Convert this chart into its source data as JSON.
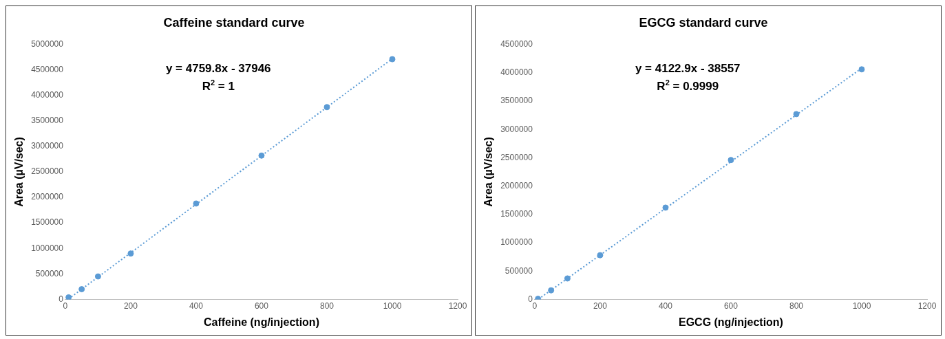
{
  "chart_data": [
    {
      "type": "scatter",
      "title": "Caffeine standard curve",
      "xlabel": "Caffeine (ng/injection)",
      "ylabel": "Area (µV/sec)",
      "annotations": [
        "y = 4759.8x - 37946",
        "R$^{2}$ = 1"
      ],
      "xlim": [
        0,
        1200
      ],
      "xticks": [
        0,
        200,
        400,
        600,
        800,
        1000,
        1200
      ],
      "ylim": [
        0,
        5000000
      ],
      "yticks": [
        0,
        500000,
        1000000,
        1500000,
        2000000,
        2500000,
        3000000,
        3500000,
        4000000,
        4500000,
        5000000
      ],
      "grid": false,
      "legend": false,
      "series": [
        {
          "type": "scatter",
          "color": "#5b9bd5",
          "marker": "circle",
          "x": [
            10,
            50,
            100,
            200,
            400,
            600,
            800,
            1000
          ],
          "values": [
            40000,
            200000,
            450000,
            900000,
            1880000,
            2820000,
            3770000,
            4710000
          ]
        },
        {
          "type": "line",
          "color": "#5b9bd5",
          "line_style": "dotted",
          "marker": "none",
          "x": [
            10,
            1000
          ],
          "values": [
            10000,
            4720000
          ]
        }
      ]
    },
    {
      "type": "scatter",
      "title": "EGCG standard curve",
      "xlabel": "EGCG (ng/injection)",
      "ylabel": "Area (µV/sec)",
      "annotations": [
        "y = 4122.9x - 38557",
        "R$^{2}$ = 0.9999"
      ],
      "xlim": [
        0,
        1200
      ],
      "xticks": [
        0,
        200,
        400,
        600,
        800,
        1000,
        1200
      ],
      "ylim": [
        0,
        4500000
      ],
      "yticks": [
        0,
        500000,
        1000000,
        1500000,
        2000000,
        2500000,
        3000000,
        3500000,
        4000000,
        4500000
      ],
      "grid": false,
      "legend": false,
      "series": [
        {
          "type": "scatter",
          "color": "#5b9bd5",
          "marker": "circle",
          "x": [
            10,
            50,
            100,
            200,
            400,
            600,
            800,
            1000
          ],
          "values": [
            10000,
            160000,
            370000,
            780000,
            1620000,
            2460000,
            3270000,
            4060000
          ]
        },
        {
          "type": "line",
          "color": "#5b9bd5",
          "line_style": "dotted",
          "marker": "none",
          "x": [
            20,
            1000
          ],
          "values": [
            40000,
            4080000
          ]
        }
      ]
    }
  ]
}
